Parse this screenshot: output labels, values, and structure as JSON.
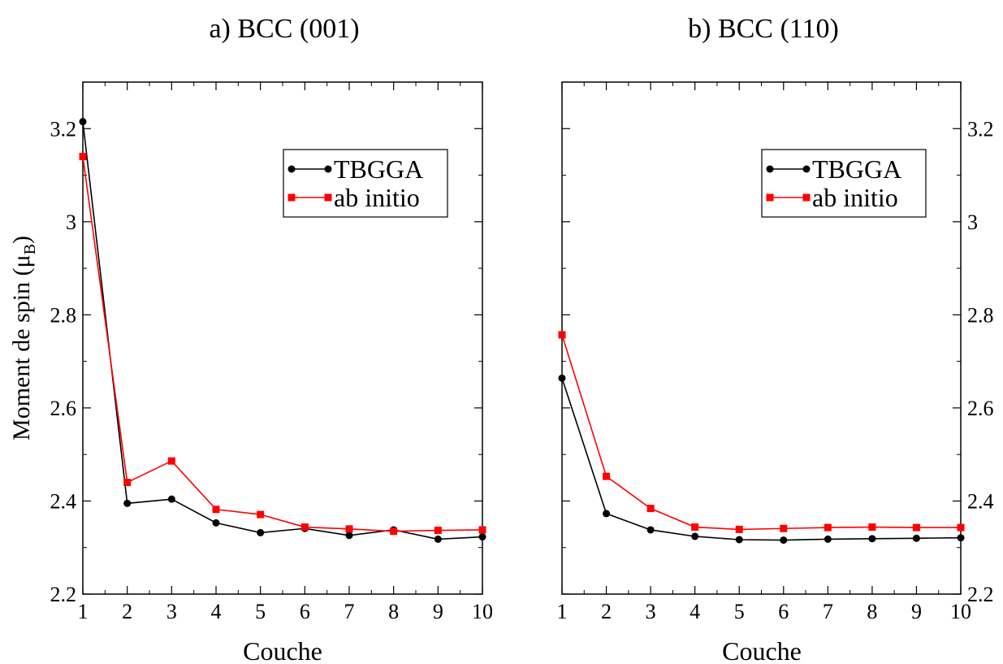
{
  "chart_data": [
    {
      "type": "line",
      "title": "a) BCC (001)",
      "xlabel": "Couche",
      "ylabel_main": "Moment de spin (μ",
      "ylabel_sub": "B",
      "ylabel_close": ")",
      "xlim": [
        1,
        10
      ],
      "ylim": [
        2.2,
        3.3
      ],
      "xticks": [
        1,
        2,
        3,
        4,
        5,
        6,
        7,
        8,
        9,
        10
      ],
      "yticks": [
        2.2,
        2.4,
        2.6,
        2.8,
        3.0,
        3.2
      ],
      "ytick_labels": [
        "2.2",
        "2.4",
        "2.6",
        "2.8",
        "3",
        "3.2"
      ],
      "ytick_side": "left",
      "legend_position": "top-right",
      "x": [
        1,
        2,
        3,
        4,
        5,
        6,
        7,
        8,
        9,
        10
      ],
      "series": [
        {
          "name": "TBGGA",
          "color": "#000000",
          "marker": "circle",
          "values": [
            3.215,
            2.395,
            2.404,
            2.353,
            2.332,
            2.341,
            2.326,
            2.338,
            2.318,
            2.323
          ]
        },
        {
          "name": "ab initio",
          "color": "#ff0000",
          "marker": "square",
          "values": [
            3.14,
            2.44,
            2.486,
            2.382,
            2.371,
            2.344,
            2.34,
            2.335,
            2.337,
            2.338
          ]
        }
      ]
    },
    {
      "type": "line",
      "title": "b) BCC (110)",
      "xlabel": "Couche",
      "xlim": [
        1,
        10
      ],
      "ylim": [
        2.2,
        3.3
      ],
      "xticks": [
        1,
        2,
        3,
        4,
        5,
        6,
        7,
        8,
        9,
        10
      ],
      "yticks": [
        2.2,
        2.4,
        2.6,
        2.8,
        3.0,
        3.2
      ],
      "ytick_labels": [
        "2.2",
        "2.4",
        "2.6",
        "2.8",
        "3",
        "3.2"
      ],
      "ytick_side": "right",
      "legend_position": "top-right",
      "x": [
        1,
        2,
        3,
        4,
        5,
        6,
        7,
        8,
        9,
        10
      ],
      "series": [
        {
          "name": "TBGGA",
          "color": "#000000",
          "marker": "circle",
          "values": [
            2.664,
            2.373,
            2.338,
            2.324,
            2.317,
            2.316,
            2.318,
            2.319,
            2.32,
            2.321
          ]
        },
        {
          "name": "ab initio",
          "color": "#ff0000",
          "marker": "square",
          "values": [
            2.757,
            2.453,
            2.384,
            2.344,
            2.339,
            2.341,
            2.343,
            2.344,
            2.343,
            2.343
          ]
        }
      ]
    }
  ]
}
